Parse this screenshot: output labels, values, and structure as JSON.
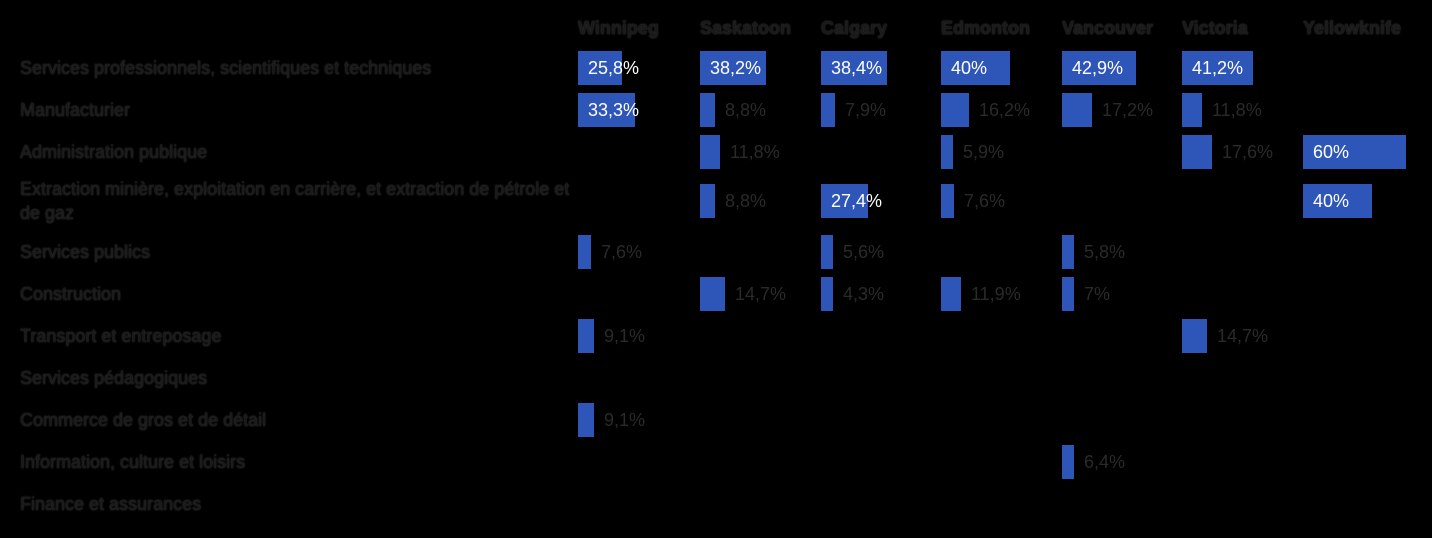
{
  "chart_data": {
    "type": "table",
    "title": "",
    "bar_color": "#2e56b8",
    "columns": [
      "Winnipeg",
      "Saskatoon",
      "Calgary",
      "Edmonton",
      "Vancouver",
      "Victoria",
      "Yellowknife"
    ],
    "rows": [
      {
        "label": "Services professionnels, scientifiques et techniques",
        "cells": [
          {
            "v": 25.8,
            "t": "25,8%"
          },
          {
            "v": 38.2,
            "t": "38,2%"
          },
          {
            "v": 38.4,
            "t": "38,4%"
          },
          {
            "v": 40,
            "t": "40%"
          },
          {
            "v": 42.9,
            "t": "42,9%"
          },
          {
            "v": 41.2,
            "t": "41,2%"
          },
          null
        ]
      },
      {
        "label": "Manufacturier",
        "cells": [
          {
            "v": 33.3,
            "t": "33,3%"
          },
          {
            "v": 8.8,
            "t": "8,8%"
          },
          {
            "v": 7.9,
            "t": "7,9%"
          },
          {
            "v": 16.2,
            "t": "16,2%"
          },
          {
            "v": 17.2,
            "t": "17,2%"
          },
          {
            "v": 11.8,
            "t": "11,8%"
          },
          null
        ]
      },
      {
        "label": "Administration publique",
        "cells": [
          null,
          {
            "v": 11.8,
            "t": "11,8%"
          },
          null,
          {
            "v": 5.9,
            "t": "5,9%"
          },
          null,
          {
            "v": 17.6,
            "t": "17,6%"
          },
          {
            "v": 60,
            "t": "60%"
          }
        ]
      },
      {
        "label": "Extraction minière, exploitation en carrière, et extraction de pétrole et de gaz",
        "cells": [
          null,
          {
            "v": 8.8,
            "t": "8,8%"
          },
          {
            "v": 27.4,
            "t": "27,4%"
          },
          {
            "v": 7.6,
            "t": "7,6%"
          },
          null,
          null,
          {
            "v": 40,
            "t": "40%"
          }
        ]
      },
      {
        "label": "Services publics",
        "cells": [
          {
            "v": 7.6,
            "t": "7,6%"
          },
          null,
          {
            "v": 5.6,
            "t": "5,6%"
          },
          null,
          {
            "v": 5.8,
            "t": "5,8%"
          },
          null,
          null
        ]
      },
      {
        "label": "Construction",
        "cells": [
          null,
          {
            "v": 14.7,
            "t": "14,7%"
          },
          {
            "v": 4.3,
            "t": "4,3%"
          },
          {
            "v": 11.9,
            "t": "11,9%"
          },
          {
            "v": 7,
            "t": "7%"
          },
          null,
          null
        ]
      },
      {
        "label": "Transport et entreposage",
        "cells": [
          {
            "v": 9.1,
            "t": "9,1%"
          },
          null,
          null,
          null,
          null,
          {
            "v": 14.7,
            "t": "14,7%"
          },
          null
        ]
      },
      {
        "label": "Services pédagogiques",
        "cells": [
          null,
          null,
          null,
          null,
          null,
          null,
          null
        ]
      },
      {
        "label": "Commerce de gros et de détail",
        "cells": [
          {
            "v": 9.1,
            "t": "9,1%"
          },
          null,
          null,
          null,
          null,
          null,
          null
        ]
      },
      {
        "label": "Information, culture et loisirs",
        "cells": [
          null,
          null,
          null,
          null,
          {
            "v": 6.4,
            "t": "6,4%"
          },
          null,
          null
        ]
      },
      {
        "label": "Finance et assurances",
        "cells": [
          null,
          null,
          null,
          null,
          null,
          null,
          null
        ]
      }
    ]
  }
}
